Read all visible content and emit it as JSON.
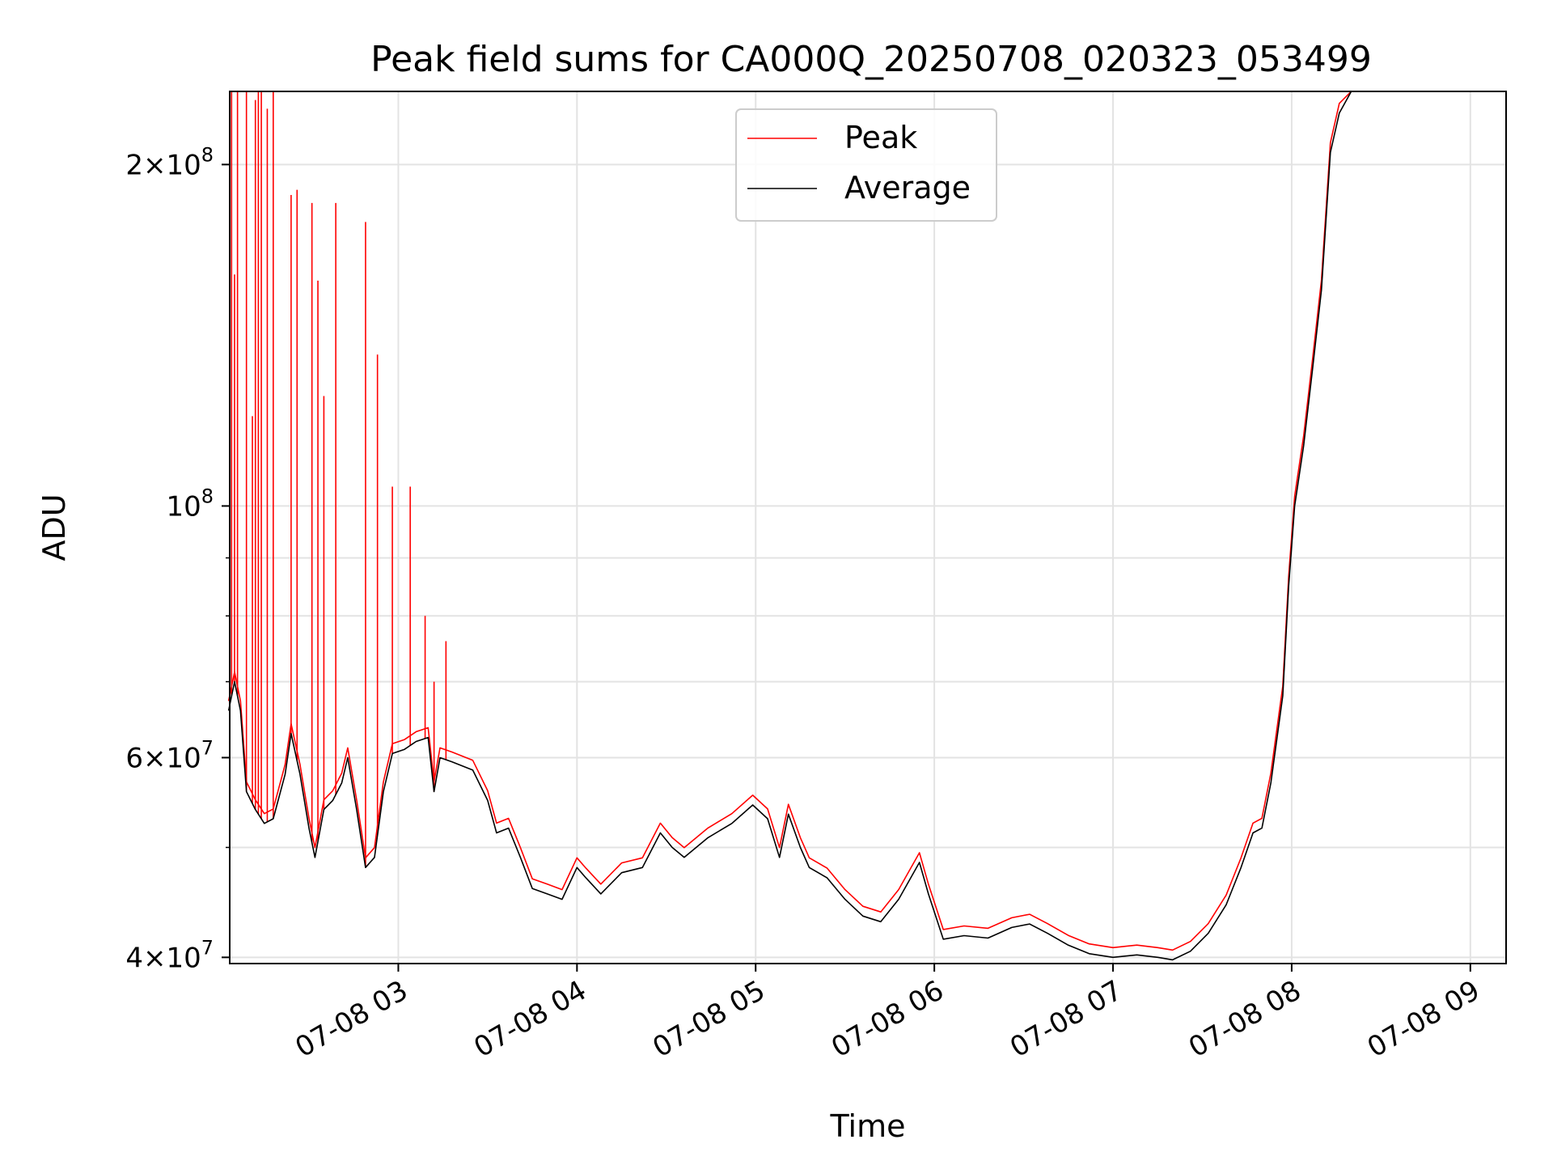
{
  "chart_data": {
    "type": "line",
    "title": "Peak field sums for CA000Q_20250708_020323_053499",
    "xlabel": "Time",
    "ylabel": "ADU",
    "y_scale": "log",
    "ylim": [
      39500000,
      232000000
    ],
    "xlim": [
      "2025-07-08T02:03:23",
      "2025-07-08T09:12:00"
    ],
    "grid": true,
    "legend_position": "top-center",
    "x_ticks": [
      {
        "t": "2025-07-08T03:00",
        "label": "07-08 03"
      },
      {
        "t": "2025-07-08T04:00",
        "label": "07-08 04"
      },
      {
        "t": "2025-07-08T05:00",
        "label": "07-08 05"
      },
      {
        "t": "2025-07-08T06:00",
        "label": "07-08 06"
      },
      {
        "t": "2025-07-08T07:00",
        "label": "07-08 07"
      },
      {
        "t": "2025-07-08T08:00",
        "label": "07-08 08"
      },
      {
        "t": "2025-07-08T09:00",
        "label": "07-08 09"
      }
    ],
    "y_ticks_major": [
      {
        "v": 40000000,
        "mant": "4",
        "exp": "7"
      },
      {
        "v": 60000000,
        "mant": "6",
        "exp": "7"
      },
      {
        "v": 100000000,
        "mant": "",
        "exp": "8"
      },
      {
        "v": 200000000,
        "mant": "2",
        "exp": "8"
      }
    ],
    "y_ticks_minor": [
      50000000,
      70000000,
      80000000,
      90000000
    ],
    "series": [
      {
        "name": "Average",
        "color": "#000000",
        "points": [
          [
            "02:03",
            66000000
          ],
          [
            "02:05",
            70000000
          ],
          [
            "02:07",
            66000000
          ],
          [
            "02:09",
            56000000
          ],
          [
            "02:12",
            54000000
          ],
          [
            "02:15",
            52500000
          ],
          [
            "02:18",
            53000000
          ],
          [
            "02:22",
            58000000
          ],
          [
            "02:24",
            63000000
          ],
          [
            "02:27",
            58000000
          ],
          [
            "02:30",
            52000000
          ],
          [
            "02:32",
            49000000
          ],
          [
            "02:35",
            54000000
          ],
          [
            "02:38",
            55000000
          ],
          [
            "02:41",
            57000000
          ],
          [
            "02:43",
            60000000
          ],
          [
            "02:46",
            54000000
          ],
          [
            "02:49",
            48000000
          ],
          [
            "02:52",
            49000000
          ],
          [
            "02:55",
            56000000
          ],
          [
            "02:58",
            60500000
          ],
          [
            "03:02",
            61000000
          ],
          [
            "03:06",
            62000000
          ],
          [
            "03:10",
            62500000
          ],
          [
            "03:12",
            56000000
          ],
          [
            "03:14",
            60000000
          ],
          [
            "03:18",
            59500000
          ],
          [
            "03:25",
            58500000
          ],
          [
            "03:30",
            55000000
          ],
          [
            "03:33",
            51500000
          ],
          [
            "03:37",
            52000000
          ],
          [
            "03:41",
            49000000
          ],
          [
            "03:45",
            46000000
          ],
          [
            "03:50",
            45500000
          ],
          [
            "03:55",
            45000000
          ],
          [
            "04:00",
            48000000
          ],
          [
            "04:03",
            47000000
          ],
          [
            "04:08",
            45500000
          ],
          [
            "04:15",
            47500000
          ],
          [
            "04:22",
            48000000
          ],
          [
            "04:28",
            51500000
          ],
          [
            "04:32",
            50000000
          ],
          [
            "04:36",
            49000000
          ],
          [
            "04:44",
            51000000
          ],
          [
            "04:52",
            52500000
          ],
          [
            "04:59",
            54500000
          ],
          [
            "05:04",
            53000000
          ],
          [
            "05:08",
            49000000
          ],
          [
            "05:11",
            53500000
          ],
          [
            "05:15",
            50000000
          ],
          [
            "05:18",
            48000000
          ],
          [
            "05:24",
            47000000
          ],
          [
            "05:30",
            45000000
          ],
          [
            "05:36",
            43500000
          ],
          [
            "05:42",
            43000000
          ],
          [
            "05:48",
            45000000
          ],
          [
            "05:55",
            48500000
          ],
          [
            "05:58",
            45500000
          ],
          [
            "06:03",
            41500000
          ],
          [
            "06:10",
            41800000
          ],
          [
            "06:18",
            41600000
          ],
          [
            "06:26",
            42500000
          ],
          [
            "06:32",
            42800000
          ],
          [
            "06:38",
            42000000
          ],
          [
            "06:45",
            41000000
          ],
          [
            "06:52",
            40300000
          ],
          [
            "07:00",
            40000000
          ],
          [
            "07:08",
            40200000
          ],
          [
            "07:15",
            40000000
          ],
          [
            "07:20",
            39800000
          ],
          [
            "07:26",
            40500000
          ],
          [
            "07:32",
            42000000
          ],
          [
            "07:38",
            44500000
          ],
          [
            "07:43",
            48000000
          ],
          [
            "07:47",
            51500000
          ],
          [
            "07:50",
            52000000
          ],
          [
            "07:53",
            57000000
          ],
          [
            "07:57",
            68000000
          ],
          [
            "07:59",
            85000000
          ],
          [
            "08:01",
            100000000
          ],
          [
            "08:04",
            113000000
          ],
          [
            "08:07",
            132000000
          ],
          [
            "08:10",
            155000000
          ],
          [
            "08:13",
            205000000
          ],
          [
            "08:16",
            222000000
          ],
          [
            "08:20",
            232000000
          ]
        ]
      },
      {
        "name": "Peak",
        "color": "#ff0000",
        "offset_factor": 1.02,
        "spikes": [
          [
            "02:04",
            232000000
          ],
          [
            "02:05",
            160000000
          ],
          [
            "02:06",
            232000000
          ],
          [
            "02:09",
            232000000
          ],
          [
            "02:11",
            120000000
          ],
          [
            "02:12",
            228000000
          ],
          [
            "02:13",
            232000000
          ],
          [
            "02:14",
            232000000
          ],
          [
            "02:16",
            224000000
          ],
          [
            "02:18",
            232000000
          ],
          [
            "02:24",
            188000000
          ],
          [
            "02:26",
            190000000
          ],
          [
            "02:31",
            185000000
          ],
          [
            "02:33",
            158000000
          ],
          [
            "02:35",
            125000000
          ],
          [
            "02:39",
            185000000
          ],
          [
            "02:49",
            178000000
          ],
          [
            "02:53",
            136000000
          ],
          [
            "02:58",
            104000000
          ],
          [
            "03:04",
            104000000
          ],
          [
            "03:09",
            80000000
          ],
          [
            "03:12",
            70000000
          ],
          [
            "03:16",
            76000000
          ]
        ]
      }
    ]
  }
}
